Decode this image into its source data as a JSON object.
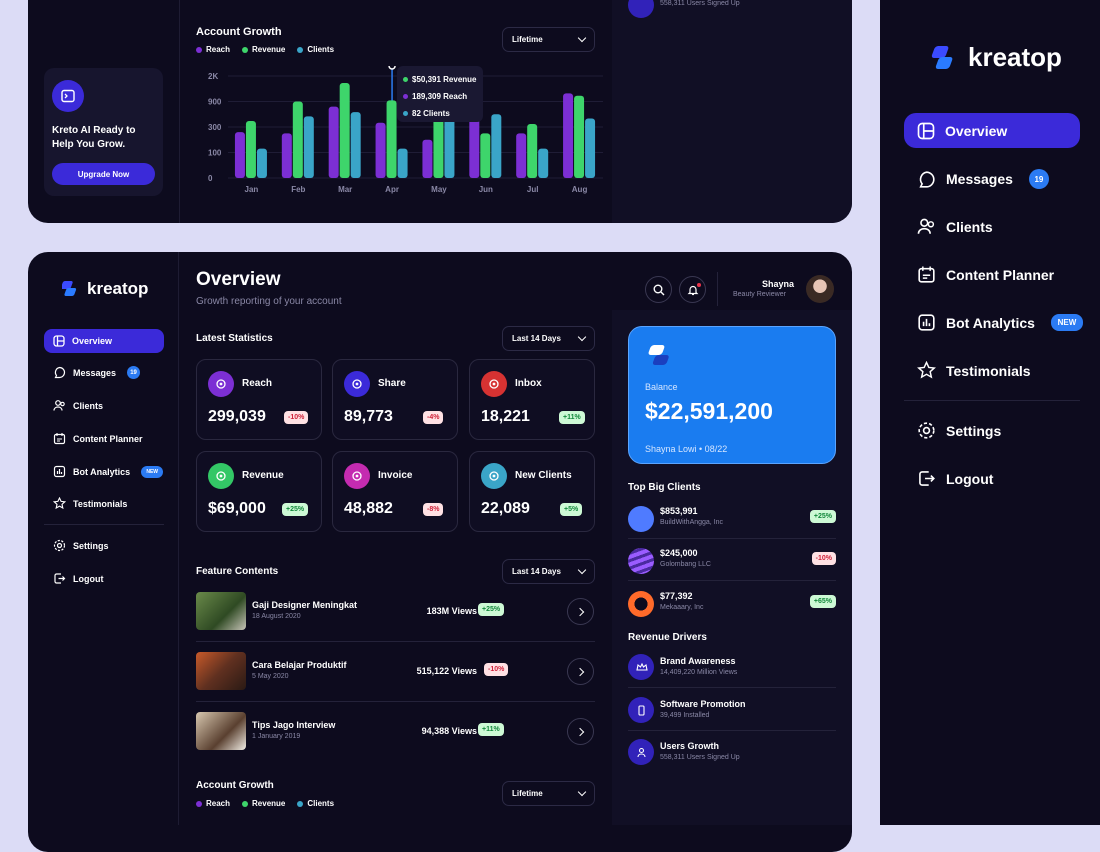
{
  "brand": {
    "name": "kreatop"
  },
  "colors": {
    "accent": "#3b2ad9",
    "blue": "#1a7cf0",
    "reach": "#7c2fd4",
    "revenue": "#3ed56b",
    "clients": "#3aa5c8",
    "bg": "#0d0b1e"
  },
  "top_panel": {
    "promo": {
      "text_line1": "Kreto AI Ready to",
      "text_line2": "Help You Grow.",
      "button": "Upgrade Now",
      "icon": "terminal-icon"
    },
    "growth": {
      "title": "Account Growth",
      "select": "Lifetime",
      "tooltip": {
        "revenue": "$50,391 Revenue",
        "reach": "189,309 Reach",
        "clients": "82 Clients"
      }
    },
    "right_partial": {
      "text": "558,311 Users Signed Up"
    }
  },
  "chart_data": {
    "type": "bar",
    "categories": [
      "Jan",
      "Feb",
      "Mar",
      "Apr",
      "May",
      "Jun",
      "Jul",
      "Aug"
    ],
    "series": [
      {
        "name": "Reach",
        "values": [
          260,
          250,
          780,
          400,
          200,
          800,
          250,
          1250
        ]
      },
      {
        "name": "Revenue",
        "values": [
          440,
          900,
          1700,
          950,
          1000,
          250,
          370,
          1150
        ]
      },
      {
        "name": "Clients",
        "values": [
          130,
          550,
          650,
          130,
          980,
          600,
          130,
          500
        ]
      }
    ],
    "y_ticks": [
      "2K",
      "900",
      "300",
      "100",
      "0"
    ],
    "legend": "top-left",
    "highlight_category": "Apr"
  },
  "main": {
    "sidebar": {
      "items": [
        {
          "label": "Overview",
          "icon": "overview-icon"
        },
        {
          "label": "Messages",
          "icon": "messages-icon",
          "badge": "19"
        },
        {
          "label": "Clients",
          "icon": "clients-icon"
        },
        {
          "label": "Content Planner",
          "icon": "content-planner-icon"
        },
        {
          "label": "Bot Analytics",
          "icon": "bot-analytics-icon",
          "badge": "NEW"
        },
        {
          "label": "Testimonials",
          "icon": "star-icon"
        }
      ],
      "bottom": [
        {
          "label": "Settings",
          "icon": "gear-icon"
        },
        {
          "label": "Logout",
          "icon": "logout-icon"
        }
      ]
    },
    "header": {
      "title": "Overview",
      "subtitle": "Growth reporting of your account",
      "user_name": "Shayna",
      "user_role": "Beauty Reviewer"
    },
    "stats": {
      "title": "Latest Statistics",
      "select": "Last 14 Days",
      "cards": [
        {
          "name": "Reach",
          "value": "299,039",
          "change": "-10%",
          "dir": "down",
          "color": "#7c2fd4"
        },
        {
          "name": "Share",
          "value": "89,773",
          "change": "-4%",
          "dir": "down",
          "color": "#3b2ad9"
        },
        {
          "name": "Inbox",
          "value": "18,221",
          "change": "+11%",
          "dir": "up",
          "color": "#d63232"
        },
        {
          "name": "Revenue",
          "value": "$69,000",
          "change": "+25%",
          "dir": "up",
          "color": "#33c766"
        },
        {
          "name": "Invoice",
          "value": "48,882",
          "change": "-8%",
          "dir": "down",
          "color": "#c42bb0"
        },
        {
          "name": "New Clients",
          "value": "22,089",
          "change": "+5%",
          "dir": "up",
          "color": "#3aa5c8"
        }
      ]
    },
    "features": {
      "title": "Feature Contents",
      "select": "Last 14 Days",
      "items": [
        {
          "title": "Gaji Designer Meningkat",
          "date": "18 August 2020",
          "views": "183M Views",
          "change": "+25%",
          "dir": "up"
        },
        {
          "title": "Cara Belajar Produktif",
          "date": "5 May 2020",
          "views": "515,122 Views",
          "change": "-10%",
          "dir": "down"
        },
        {
          "title": "Tips Jago Interview",
          "date": "1 January 2019",
          "views": "94,388 Views",
          "change": "+11%",
          "dir": "up"
        }
      ]
    },
    "growth_bottom": {
      "title": "Account Growth",
      "select": "Lifetime"
    },
    "balance": {
      "label": "Balance",
      "amount": "$22,591,200",
      "holder": "Shayna Lowi • 08/22"
    },
    "top_clients": {
      "title": "Top Big Clients",
      "items": [
        {
          "amount": "$853,991",
          "name": "BuildWithAngga, Inc",
          "change": "+25%",
          "dir": "up"
        },
        {
          "amount": "$245,000",
          "name": "Golombang LLC",
          "change": "-10%",
          "dir": "down"
        },
        {
          "amount": "$77,392",
          "name": "Mekaaary, Inc",
          "change": "+65%",
          "dir": "up"
        }
      ]
    },
    "revenue_drivers": {
      "title": "Revenue Drivers",
      "items": [
        {
          "title": "Brand Awareness",
          "sub": "14,409,220 Million Views",
          "icon": "crown-icon"
        },
        {
          "title": "Software Promotion",
          "sub": "39,499 Installed",
          "icon": "phone-icon"
        },
        {
          "title": "Users Growth",
          "sub": "558,311 Users Signed Up",
          "icon": "user-icon"
        }
      ]
    }
  }
}
